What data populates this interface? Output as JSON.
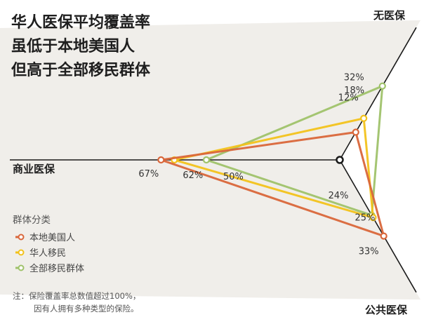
{
  "title_lines": [
    "华人医保平均覆盖率",
    "虽低于本地美国人",
    "但高于全部移民群体"
  ],
  "chart_data": {
    "type": "radar",
    "axes": [
      "无医保",
      "商业医保",
      "公共医保"
    ],
    "series": [
      {
        "name": "本地美国人",
        "color": "#d9663a",
        "values": [
          12,
          67,
          33
        ]
      },
      {
        "name": "华人移民",
        "color": "#f2c21b",
        "values": [
          18,
          62,
          25
        ]
      },
      {
        "name": "全部移民群体",
        "color": "#9fc26a",
        "values": [
          32,
          50,
          24
        ]
      }
    ],
    "legend_title": "群体分类",
    "legend_position": "bottom-left",
    "value_suffix": "%"
  },
  "note_lines": [
    "注：保险覆盖率总数值超过100%，",
    "因有人拥有多种类型的保险。"
  ],
  "colors": {
    "axis": "#1a1a1a",
    "center": "#1a1a1a",
    "fan": "#f0eeea"
  }
}
